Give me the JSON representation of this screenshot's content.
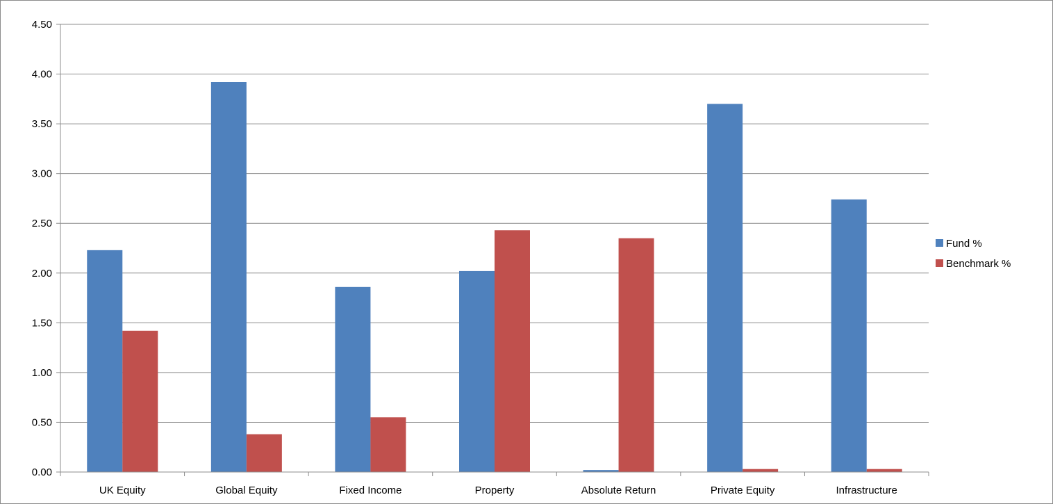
{
  "chart_data": {
    "type": "bar",
    "categories": [
      "UK Equity",
      "Global Equity",
      "Fixed Income",
      "Property",
      "Absolute Return",
      "Private Equity",
      "Infrastructure"
    ],
    "series": [
      {
        "name": "Fund %",
        "color": "#4f81bd",
        "values": [
          2.23,
          3.92,
          1.86,
          2.02,
          0.02,
          3.7,
          2.74
        ]
      },
      {
        "name": "Benchmark %",
        "color": "#c0504d",
        "values": [
          1.42,
          0.38,
          0.55,
          2.43,
          2.35,
          0.03,
          0.03
        ]
      }
    ],
    "ylim": [
      0,
      4.5
    ],
    "yticks": [
      "0.00",
      "0.50",
      "1.00",
      "1.50",
      "2.00",
      "2.50",
      "3.00",
      "3.50",
      "4.00",
      "4.50"
    ],
    "grid": true,
    "legend": "right",
    "title": "",
    "xlabel": "",
    "ylabel": ""
  }
}
